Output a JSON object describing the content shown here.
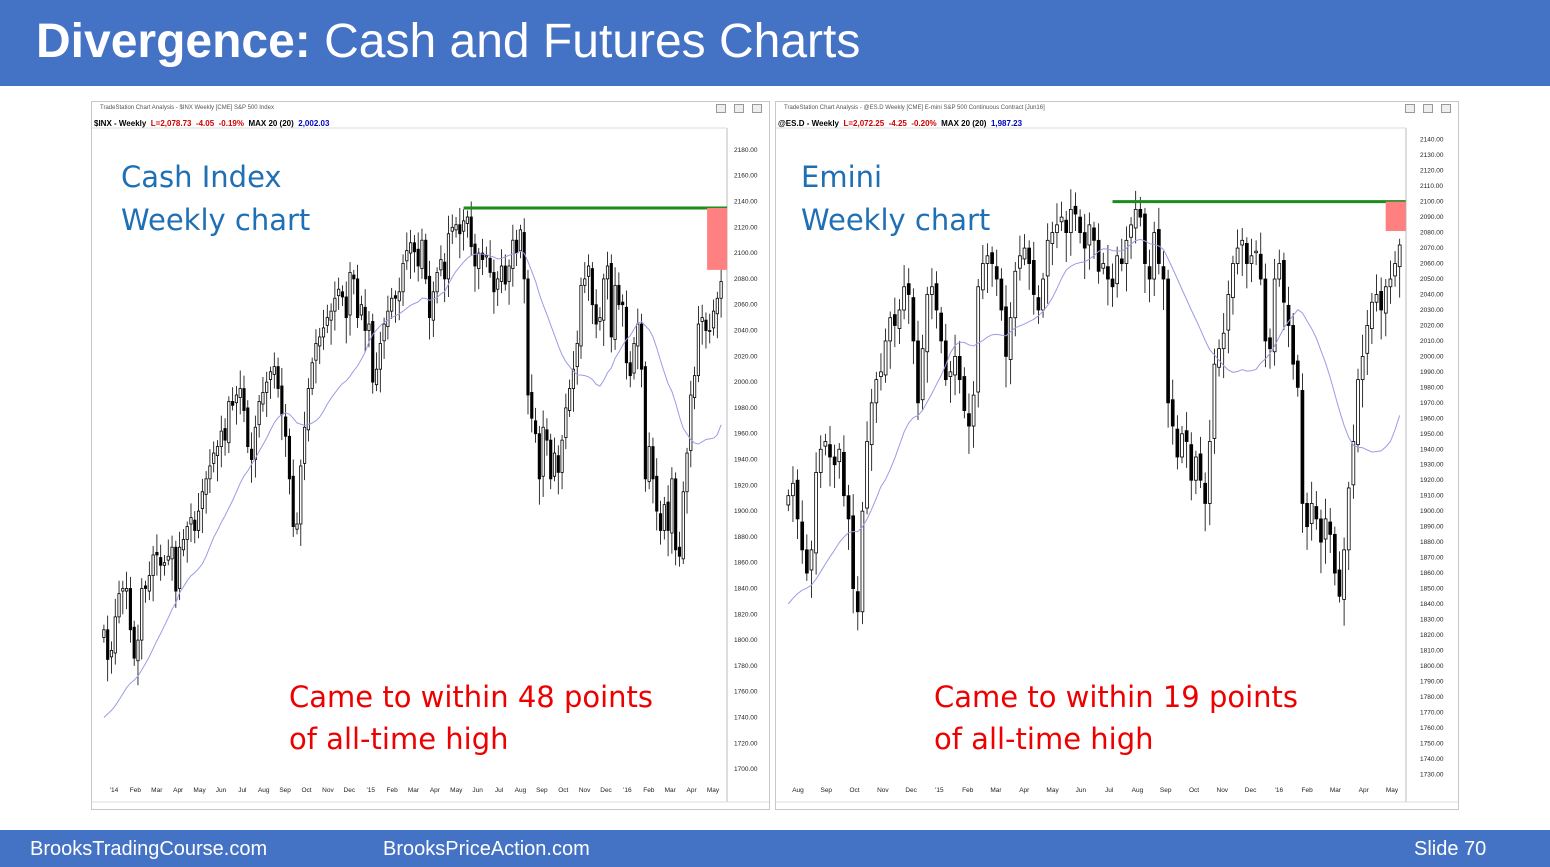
{
  "slide": {
    "title_bold": "Divergence:",
    "title_rest": " Cash and Futures Charts",
    "footer_left": "BrooksTradingCourse.com",
    "footer_mid": "BrooksPriceAction.com",
    "footer_right": "Slide  70"
  },
  "colors": {
    "banner": "#4472c4",
    "label_blue": "#1f6fb5",
    "annotation_red": "#ee0000",
    "resistance_green": "#1a8c1a",
    "gap_box": "#ff8080",
    "moving_average": "#9b9be6"
  },
  "chart_data": [
    {
      "type": "candlestick",
      "window_caption": "TradeStation Chart Analysis - $INX Weekly [CME] S&P 500 Index",
      "legend": {
        "symbol": "$INX - Weekly",
        "last": "L=2,078.73",
        "change": "-4.05",
        "change_pct": "-0.19%",
        "ma_label": "MAX 20 (20)",
        "ma_value": "2,002.03"
      },
      "overlay_label": [
        "Cash Index",
        "Weekly chart"
      ],
      "annotation": [
        "Came to within 48 points",
        "of all-time high"
      ],
      "y_ticks": [
        "1700.00",
        "1720.00",
        "1740.00",
        "1760.00",
        "1780.00",
        "1800.00",
        "1820.00",
        "1840.00",
        "1860.00",
        "1880.00",
        "1900.00",
        "1920.00",
        "1940.00",
        "1960.00",
        "1980.00",
        "2000.00",
        "2020.00",
        "2040.00",
        "2060.00",
        "2080.00",
        "2100.00",
        "2120.00",
        "2140.00",
        "2160.00",
        "2180.00"
      ],
      "ylim": [
        1690,
        2190
      ],
      "x_labels": [
        "'14",
        "Feb",
        "Mar",
        "Apr",
        "May",
        "Jun",
        "Jul",
        "Aug",
        "Sep",
        "Oct",
        "Nov",
        "Dec",
        "'15",
        "Feb",
        "Mar",
        "Apr",
        "May",
        "Jun",
        "Jul",
        "Aug",
        "Sep",
        "Oct",
        "Nov",
        "Dec",
        "'16",
        "Feb",
        "Mar",
        "Apr",
        "May"
      ],
      "all_time_high": 2135,
      "recent_high": 2087,
      "close_prices": [
        1808,
        1785,
        1792,
        1818,
        1836,
        1840,
        1840,
        1808,
        1786,
        1800,
        1840,
        1840,
        1850,
        1866,
        1866,
        1858,
        1860,
        1865,
        1872,
        1838,
        1872,
        1878,
        1888,
        1895,
        1885,
        1900,
        1915,
        1925,
        1935,
        1945,
        1950,
        1962,
        1955,
        1985,
        1982,
        1990,
        1995,
        1978,
        1950,
        1940,
        1965,
        1985,
        1992,
        2000,
        2008,
        2012,
        1995,
        1975,
        1958,
        1925,
        1888,
        1890,
        1935,
        1965,
        1995,
        2015,
        2030,
        2035,
        2042,
        2050,
        2055,
        2065,
        2072,
        2066,
        2050,
        2085,
        2080,
        2050,
        2060,
        2040,
        2045,
        2000,
        2010,
        2030,
        2045,
        2055,
        2065,
        2065,
        2070,
        2092,
        2102,
        2108,
        2101,
        2090,
        2110,
        2080,
        2050,
        2070,
        2085,
        2095,
        2080,
        2115,
        2120,
        2122,
        2115,
        2125,
        2128,
        2105,
        2090,
        2100,
        2095,
        2098,
        2085,
        2070,
        2080,
        2090,
        2076,
        2090,
        2110,
        2100,
        2118,
        2080,
        1990,
        1972,
        1960,
        1925,
        1965,
        1955,
        1925,
        1945,
        1930,
        1955,
        1980,
        1995,
        2010,
        2030,
        2075,
        2080,
        2090,
        2060,
        2045,
        2050,
        2080,
        2090,
        2035,
        2075,
        2060,
        2060,
        2015,
        2005,
        2030,
        2045,
        2010,
        1925,
        1950,
        1925,
        1900,
        1885,
        1905,
        1885,
        1925,
        1870,
        1865,
        1915,
        1945,
        1990,
        2005,
        2045,
        2050,
        2040,
        2040,
        2055,
        2065,
        2078
      ],
      "ma20_start": 1740,
      "pct_gap": "48"
    },
    {
      "type": "candlestick",
      "window_caption": "TradeStation Chart Analysis - @ES.D Weekly [CME] E-mini S&P 500 Continuous Contract [Jun16]",
      "legend": {
        "symbol": "@ES.D - Weekly",
        "last": "L=2,072.25",
        "change": "-4.25",
        "change_pct": "-0.20%",
        "ma_label": "MAX 20 (20)",
        "ma_value": "1,987.23"
      },
      "overlay_label": [
        "Emini",
        "Weekly chart"
      ],
      "annotation": [
        "Came to within 19 points",
        "of all-time high"
      ],
      "y_ticks": [
        "1730.00",
        "1740.00",
        "1750.00",
        "1760.00",
        "1770.00",
        "1780.00",
        "1790.00",
        "1800.00",
        "1810.00",
        "1820.00",
        "1830.00",
        "1840.00",
        "1850.00",
        "1860.00",
        "1870.00",
        "1880.00",
        "1890.00",
        "1900.00",
        "1910.00",
        "1920.00",
        "1930.00",
        "1940.00",
        "1950.00",
        "1960.00",
        "1970.00",
        "1980.00",
        "1990.00",
        "2000.00",
        "2010.00",
        "2020.00",
        "2030.00",
        "2040.00",
        "2050.00",
        "2060.00",
        "2070.00",
        "2080.00",
        "2090.00",
        "2100.00",
        "2110.00",
        "2120.00",
        "2130.00",
        "2140.00"
      ],
      "ylim": [
        1725,
        2145
      ],
      "x_labels": [
        "Aug",
        "Sep",
        "Oct",
        "Nov",
        "Dec",
        "'15",
        "Feb",
        "Mar",
        "Apr",
        "May",
        "Jun",
        "Jul",
        "Aug",
        "Sep",
        "Oct",
        "Nov",
        "Dec",
        "'16",
        "Feb",
        "Mar",
        "Apr",
        "May"
      ],
      "all_time_high": 2100,
      "recent_high": 2081,
      "close_prices": [
        1910,
        1918,
        1895,
        1875,
        1860,
        1875,
        1925,
        1940,
        1945,
        1935,
        1930,
        1940,
        1910,
        1895,
        1850,
        1835,
        1900,
        1945,
        1970,
        1985,
        1990,
        2010,
        2025,
        2020,
        2030,
        2045,
        2040,
        2010,
        1970,
        2005,
        2040,
        2045,
        2030,
        2010,
        1985,
        1990,
        2000,
        1985,
        1965,
        1955,
        1975,
        2045,
        2060,
        2065,
        2060,
        2050,
        2030,
        2000,
        2025,
        2055,
        2065,
        2070,
        2060,
        2040,
        2030,
        2050,
        2075,
        2080,
        2085,
        2090,
        2080,
        2095,
        2092,
        2080,
        2070,
        2085,
        2075,
        2055,
        2060,
        2050,
        2045,
        2065,
        2060,
        2075,
        2085,
        2095,
        2090,
        2060,
        2050,
        2080,
        2060,
        2050,
        1970,
        1955,
        1935,
        1950,
        1945,
        1920,
        1935,
        1920,
        1905,
        1945,
        1995,
        2005,
        2015,
        2040,
        2060,
        2070,
        2075,
        2060,
        2065,
        2068,
        2050,
        2010,
        2005,
        2050,
        2060,
        2035,
        2020,
        1995,
        1980,
        1905,
        1890,
        1905,
        1895,
        1880,
        1895,
        1885,
        1860,
        1845,
        1875,
        1915,
        1945,
        1985,
        2000,
        2020,
        2035,
        2040,
        2030,
        2045,
        2050,
        2060,
        2072
      ],
      "ma20_start": 1840,
      "pct_gap": "19"
    }
  ]
}
